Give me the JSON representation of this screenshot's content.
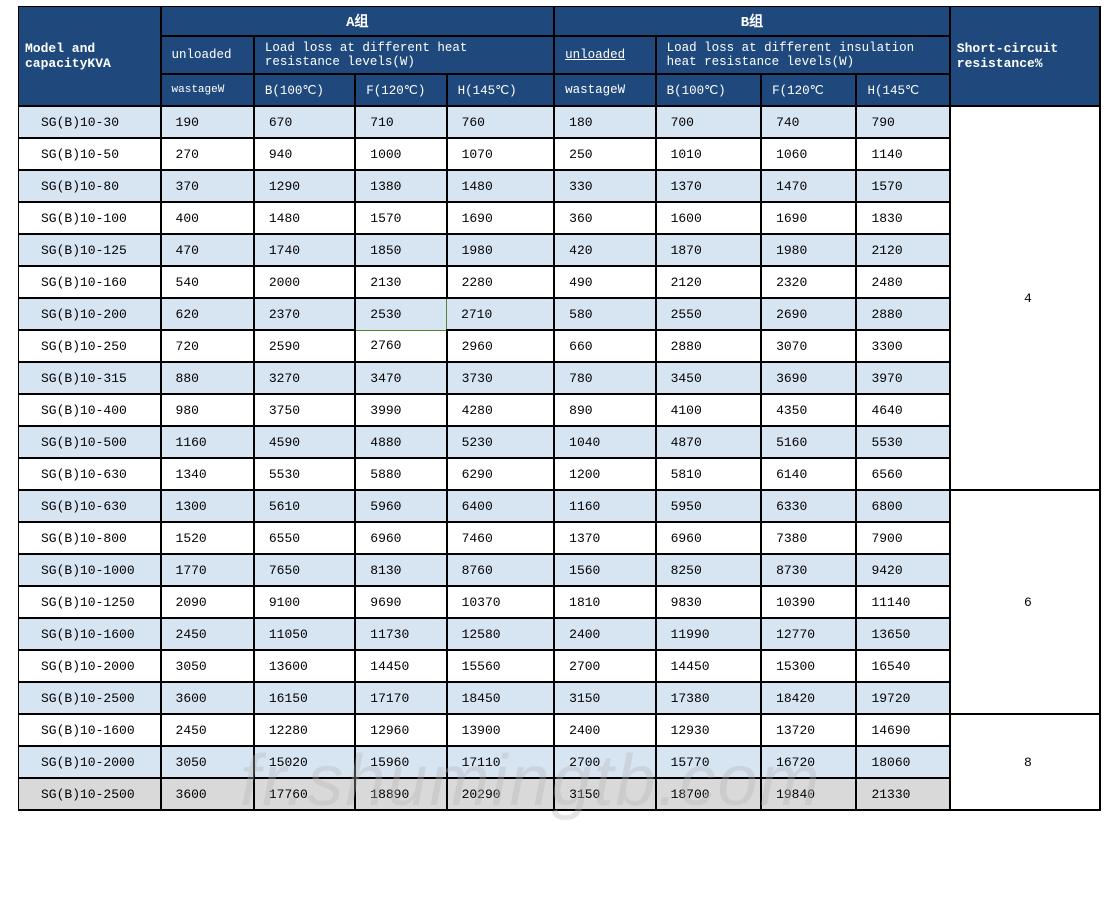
{
  "headers": {
    "model": "Model and capacityKVA",
    "group_a": "A组",
    "group_b": "B组",
    "unloaded_a": "unloaded",
    "unloaded_b": "unloaded",
    "loss_a": "Load loss at different heat resistance levels(W)",
    "loss_b": "Load loss at different insulation heat resistance levels(W)",
    "wastage_a": "wastageW",
    "wastage_b": "wastageW",
    "b100": "B(100℃)",
    "f120_a": "F(120℃)",
    "h145_a": "H(145℃)",
    "f120_b": "F(120℃",
    "h145_b": "H(145℃",
    "short_circuit": "Short-circuit resistance%"
  },
  "colors": {
    "header_bg": "#1f497d",
    "header_fg": "#ffffff",
    "row_alt": "#d7e4f2",
    "row_dim": "#d9d9d9",
    "border": "#000000",
    "green_cell": "#548235"
  },
  "groups": [
    {
      "sc": "4",
      "rows": [
        {
          "m": "SG(B)10-30",
          "a": [
            "190",
            "670",
            "710",
            "760"
          ],
          "b": [
            "180",
            "700",
            "740",
            "790"
          ],
          "s": true
        },
        {
          "m": "SG(B)10-50",
          "a": [
            "270",
            "940",
            "1000",
            "1070"
          ],
          "b": [
            "250",
            "1010",
            "1060",
            "1140"
          ],
          "s": false
        },
        {
          "m": "SG(B)10-80",
          "a": [
            "370",
            "1290",
            "1380",
            "1480"
          ],
          "b": [
            "330",
            "1370",
            "1470",
            "1570"
          ],
          "s": true
        },
        {
          "m": "SG(B)10-100",
          "a": [
            "400",
            "1480",
            "1570",
            "1690"
          ],
          "b": [
            "360",
            "1600",
            "1690",
            "1830"
          ],
          "s": false
        },
        {
          "m": "SG(B)10-125",
          "a": [
            "470",
            "1740",
            "1850",
            "1980"
          ],
          "b": [
            "420",
            "1870",
            "1980",
            "2120"
          ],
          "s": true
        },
        {
          "m": "SG(B)10-160",
          "a": [
            "540",
            "2000",
            "2130",
            "2280"
          ],
          "b": [
            "490",
            "2120",
            "2320",
            "2480"
          ],
          "s": false
        },
        {
          "m": "SG(B)10-200",
          "a": [
            "620",
            "2370",
            "2530",
            "2710"
          ],
          "b": [
            "580",
            "2550",
            "2690",
            "2880"
          ],
          "s": true,
          "green": 2
        },
        {
          "m": "SG(B)10-250",
          "a": [
            "720",
            "2590",
            "2760",
            "2960"
          ],
          "b": [
            "660",
            "2880",
            "3070",
            "3300"
          ],
          "s": false
        },
        {
          "m": "SG(B)10-315",
          "a": [
            "880",
            "3270",
            "3470",
            "3730"
          ],
          "b": [
            "780",
            "3450",
            "3690",
            "3970"
          ],
          "s": true
        },
        {
          "m": "SG(B)10-400",
          "a": [
            "980",
            "3750",
            "3990",
            "4280"
          ],
          "b": [
            "890",
            "4100",
            "4350",
            "4640"
          ],
          "s": false
        },
        {
          "m": "SG(B)10-500",
          "a": [
            "1160",
            "4590",
            "4880",
            "5230"
          ],
          "b": [
            "1040",
            "4870",
            "5160",
            "5530"
          ],
          "s": true
        },
        {
          "m": "SG(B)10-630",
          "a": [
            "1340",
            "5530",
            "5880",
            "6290"
          ],
          "b": [
            "1200",
            "5810",
            "6140",
            "6560"
          ],
          "s": false
        }
      ]
    },
    {
      "sc": "6",
      "rows": [
        {
          "m": "SG(B)10-630",
          "a": [
            "1300",
            "5610",
            "5960",
            "6400"
          ],
          "b": [
            "1160",
            "5950",
            "6330",
            "6800"
          ],
          "s": true
        },
        {
          "m": "SG(B)10-800",
          "a": [
            "1520",
            "6550",
            "6960",
            "7460"
          ],
          "b": [
            "1370",
            "6960",
            "7380",
            "7900"
          ],
          "s": false
        },
        {
          "m": "SG(B)10-1000",
          "a": [
            "1770",
            "7650",
            "8130",
            "8760"
          ],
          "b": [
            "1560",
            "8250",
            "8730",
            "9420"
          ],
          "s": true
        },
        {
          "m": "SG(B)10-1250",
          "a": [
            "2090",
            "9100",
            "9690",
            "10370"
          ],
          "b": [
            "1810",
            "9830",
            "10390",
            "11140"
          ],
          "s": false
        },
        {
          "m": "SG(B)10-1600",
          "a": [
            "2450",
            "11050",
            "11730",
            "12580"
          ],
          "b": [
            "2400",
            "11990",
            "12770",
            "13650"
          ],
          "s": true
        },
        {
          "m": "SG(B)10-2000",
          "a": [
            "3050",
            "13600",
            "14450",
            "15560"
          ],
          "b": [
            "2700",
            "14450",
            "15300",
            "16540"
          ],
          "s": false
        },
        {
          "m": "SG(B)10-2500",
          "a": [
            "3600",
            "16150",
            "17170",
            "18450"
          ],
          "b": [
            "3150",
            "17380",
            "18420",
            "19720"
          ],
          "s": true
        }
      ]
    },
    {
      "sc": "8",
      "rows": [
        {
          "m": "SG(B)10-1600",
          "a": [
            "2450",
            "12280",
            "12960",
            "13900"
          ],
          "b": [
            "2400",
            "12930",
            "13720",
            "14690"
          ],
          "s": false
        },
        {
          "m": "SG(B)10-2000",
          "a": [
            "3050",
            "15020",
            "15960",
            "17110"
          ],
          "b": [
            "2700",
            "15770",
            "16720",
            "18060"
          ],
          "s": true
        },
        {
          "m": "SG(B)10-2500",
          "a": [
            "3600",
            "17760",
            "18890",
            "20290"
          ],
          "b": [
            "3150",
            "18700",
            "19840",
            "21330"
          ],
          "s": false,
          "dim": true
        }
      ]
    }
  ],
  "watermark": "fr.shumingtb.com"
}
